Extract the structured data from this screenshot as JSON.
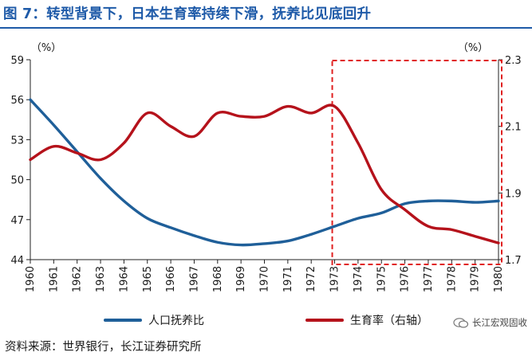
{
  "title": "图 7：转型背景下，日本生育率持续下滑，抚养比见底回升",
  "source": "资料来源：世界银行，长江证券研究所",
  "watermark": "长江宏观固收",
  "colors": {
    "title": "#1e5aa8",
    "series_blue": "#1f5f99",
    "series_red": "#b5121b",
    "highlight_box": "#e02020"
  },
  "chart_data": {
    "type": "line",
    "x": [
      1960,
      1961,
      1962,
      1963,
      1964,
      1965,
      1966,
      1967,
      1968,
      1969,
      1970,
      1971,
      1972,
      1973,
      1974,
      1975,
      1976,
      1977,
      1978,
      1979,
      1980
    ],
    "left_unit": "（%）",
    "right_unit": "（%）",
    "left_ylim": [
      44,
      59
    ],
    "left_ticks": [
      44,
      47,
      50,
      53,
      56,
      59
    ],
    "right_ylim": [
      1.7,
      2.3
    ],
    "right_ticks": [
      1.7,
      1.9,
      2.1,
      2.3
    ],
    "series": [
      {
        "name": "人口抚养比",
        "axis": "left",
        "color": "#1f5f99",
        "values": [
          56.0,
          54.1,
          52.1,
          50.1,
          48.4,
          47.1,
          46.4,
          45.8,
          45.3,
          45.1,
          45.2,
          45.4,
          45.9,
          46.5,
          47.1,
          47.5,
          48.2,
          48.4,
          48.4,
          48.3,
          48.4
        ]
      },
      {
        "name": "生育率（右轴）",
        "axis": "right",
        "color": "#b5121b",
        "values": [
          2.0,
          2.04,
          2.02,
          2.0,
          2.05,
          2.14,
          2.1,
          2.07,
          2.14,
          2.13,
          2.13,
          2.16,
          2.14,
          2.16,
          2.05,
          1.91,
          1.85,
          1.8,
          1.79,
          1.77,
          1.75
        ]
      }
    ],
    "highlight_range": [
      1973,
      1980
    ],
    "grid": false,
    "legend_position": "bottom"
  }
}
